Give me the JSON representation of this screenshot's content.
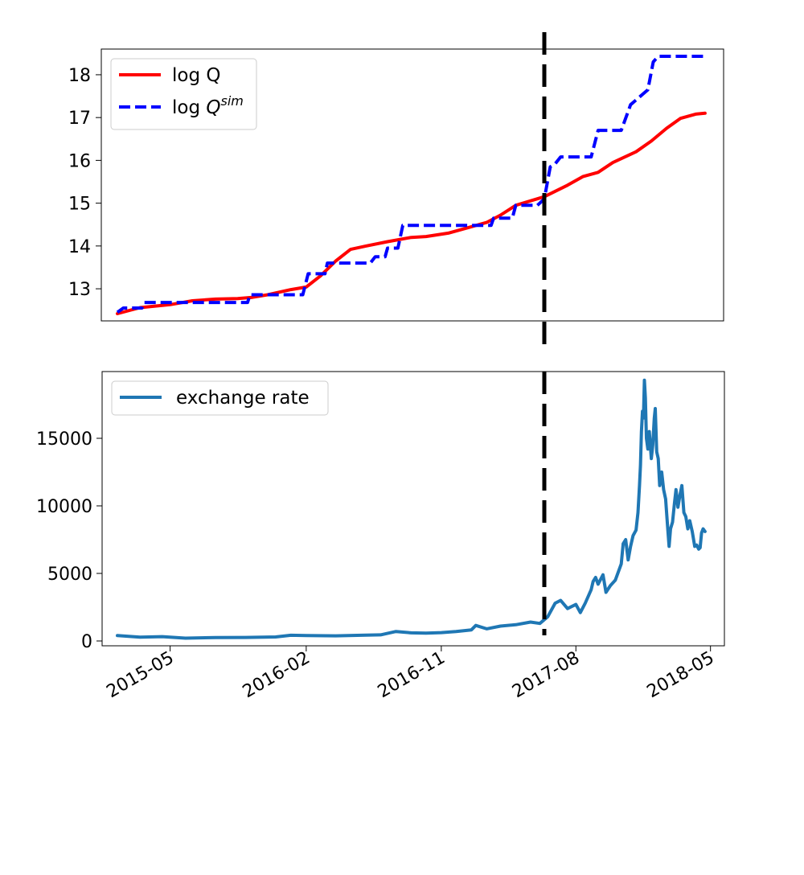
{
  "chart_data": [
    {
      "type": "line",
      "title": "",
      "xlabel": "",
      "ylabel": "",
      "x_range": [
        "2015-01-14",
        "2018-04-25"
      ],
      "ylim": [
        12.25,
        18.6
      ],
      "yticks": [
        13,
        14,
        15,
        16,
        17,
        18
      ],
      "legend": {
        "placement": "top-left",
        "entries": [
          "log Q",
          "log Q^sim"
        ]
      },
      "vertical_marker": {
        "x": "2017-05-29",
        "style": "dashed",
        "color": "#000000"
      },
      "series": [
        {
          "name": "log Q",
          "color": "#ff0000",
          "style": "solid",
          "points": [
            [
              "2015-01-14",
              12.42
            ],
            [
              "2015-03-01",
              12.56
            ],
            [
              "2015-05-01",
              12.63
            ],
            [
              "2015-06-15",
              12.72
            ],
            [
              "2015-08-01",
              12.76
            ],
            [
              "2015-09-15",
              12.77
            ],
            [
              "2015-10-15",
              12.8
            ],
            [
              "2015-11-15",
              12.86
            ],
            [
              "2016-01-01",
              12.98
            ],
            [
              "2016-02-01",
              13.04
            ],
            [
              "2016-03-01",
              13.3
            ],
            [
              "2016-04-01",
              13.65
            ],
            [
              "2016-05-01",
              13.92
            ],
            [
              "2016-06-01",
              14.0
            ],
            [
              "2016-07-15",
              14.1
            ],
            [
              "2016-09-01",
              14.2
            ],
            [
              "2016-10-01",
              14.22
            ],
            [
              "2016-11-15",
              14.3
            ],
            [
              "2017-01-01",
              14.45
            ],
            [
              "2017-02-01",
              14.55
            ],
            [
              "2017-03-01",
              14.72
            ],
            [
              "2017-04-01",
              14.95
            ],
            [
              "2017-05-29",
              15.15
            ],
            [
              "2017-07-15",
              15.42
            ],
            [
              "2017-08-15",
              15.62
            ],
            [
              "2017-09-15",
              15.72
            ],
            [
              "2017-10-15",
              15.95
            ],
            [
              "2017-12-01",
              16.2
            ],
            [
              "2018-01-01",
              16.45
            ],
            [
              "2018-02-01",
              16.75
            ],
            [
              "2018-03-01",
              16.98
            ],
            [
              "2018-04-01",
              17.08
            ],
            [
              "2018-04-20",
              17.1
            ]
          ]
        },
        {
          "name": "log Q^sim",
          "color": "#0000ff",
          "style": "dashed",
          "points": [
            [
              "2015-01-14",
              12.45
            ],
            [
              "2015-01-26",
              12.55
            ],
            [
              "2015-03-05",
              12.55
            ],
            [
              "2015-03-10",
              12.68
            ],
            [
              "2015-10-05",
              12.68
            ],
            [
              "2015-10-10",
              12.86
            ],
            [
              "2016-01-25",
              12.86
            ],
            [
              "2016-02-05",
              13.35
            ],
            [
              "2016-03-10",
              13.35
            ],
            [
              "2016-03-15",
              13.6
            ],
            [
              "2016-06-10",
              13.6
            ],
            [
              "2016-06-20",
              13.75
            ],
            [
              "2016-07-10",
              13.75
            ],
            [
              "2016-07-15",
              13.95
            ],
            [
              "2016-08-05",
              13.95
            ],
            [
              "2016-08-15",
              14.48
            ],
            [
              "2017-02-10",
              14.48
            ],
            [
              "2017-02-15",
              14.65
            ],
            [
              "2017-03-25",
              14.65
            ],
            [
              "2017-04-01",
              14.95
            ],
            [
              "2017-05-15",
              14.95
            ],
            [
              "2017-05-29",
              15.1
            ],
            [
              "2017-06-10",
              15.85
            ],
            [
              "2017-06-20",
              15.92
            ],
            [
              "2017-07-01",
              16.08
            ],
            [
              "2017-09-01",
              16.08
            ],
            [
              "2017-09-15",
              16.7
            ],
            [
              "2017-11-01",
              16.7
            ],
            [
              "2017-11-20",
              17.3
            ],
            [
              "2017-12-15",
              17.55
            ],
            [
              "2017-12-25",
              17.65
            ],
            [
              "2018-01-05",
              18.3
            ],
            [
              "2018-01-15",
              18.43
            ],
            [
              "2018-04-20",
              18.43
            ]
          ]
        }
      ]
    },
    {
      "type": "line",
      "title": "",
      "xlabel": "",
      "ylabel": "",
      "x_range": [
        "2015-01-14",
        "2018-04-25"
      ],
      "ylim": [
        -400,
        20000
      ],
      "yticks": [
        0,
        5000,
        10000,
        15000
      ],
      "xticks": [
        "2015-05",
        "2016-02",
        "2016-11",
        "2017-08",
        "2018-05"
      ],
      "legend": {
        "placement": "top-left",
        "entries": [
          "exchange rate"
        ]
      },
      "vertical_marker": {
        "x": "2017-05-29",
        "style": "dashed",
        "color": "#000000"
      },
      "series": [
        {
          "name": "exchange rate",
          "color": "#1f77b4",
          "style": "solid",
          "points": [
            [
              "2015-01-14",
              400
            ],
            [
              "2015-03-01",
              280
            ],
            [
              "2015-04-15",
              320
            ],
            [
              "2015-06-01",
              210
            ],
            [
              "2015-08-01",
              250
            ],
            [
              "2015-10-01",
              260
            ],
            [
              "2015-12-01",
              300
            ],
            [
              "2016-01-01",
              420
            ],
            [
              "2016-02-01",
              400
            ],
            [
              "2016-04-01",
              380
            ],
            [
              "2016-06-01",
              430
            ],
            [
              "2016-07-01",
              450
            ],
            [
              "2016-08-01",
              700
            ],
            [
              "2016-09-01",
              600
            ],
            [
              "2016-10-01",
              580
            ],
            [
              "2016-11-01",
              620
            ],
            [
              "2016-12-01",
              700
            ],
            [
              "2017-01-01",
              820
            ],
            [
              "2017-01-10",
              1150
            ],
            [
              "2017-02-01",
              900
            ],
            [
              "2017-03-01",
              1100
            ],
            [
              "2017-04-01",
              1200
            ],
            [
              "2017-05-01",
              1400
            ],
            [
              "2017-05-20",
              1300
            ],
            [
              "2017-06-05",
              1800
            ],
            [
              "2017-06-20",
              2800
            ],
            [
              "2017-07-01",
              3000
            ],
            [
              "2017-07-15",
              2400
            ],
            [
              "2017-08-01",
              2700
            ],
            [
              "2017-08-10",
              2100
            ],
            [
              "2017-08-20",
              2800
            ],
            [
              "2017-09-01",
              3800
            ],
            [
              "2017-09-05",
              4400
            ],
            [
              "2017-09-10",
              4700
            ],
            [
              "2017-09-15",
              4200
            ],
            [
              "2017-09-25",
              4900
            ],
            [
              "2017-10-01",
              3600
            ],
            [
              "2017-10-10",
              4100
            ],
            [
              "2017-10-20",
              4500
            ],
            [
              "2017-11-01",
              5700
            ],
            [
              "2017-11-05",
              7200
            ],
            [
              "2017-11-10",
              7500
            ],
            [
              "2017-11-15",
              6000
            ],
            [
              "2017-11-20",
              7000
            ],
            [
              "2017-11-25",
              7800
            ],
            [
              "2017-12-01",
              8200
            ],
            [
              "2017-12-05",
              9500
            ],
            [
              "2017-12-08",
              11500
            ],
            [
              "2017-12-10",
              13000
            ],
            [
              "2017-12-12",
              15500
            ],
            [
              "2017-12-14",
              17000
            ],
            [
              "2017-12-16",
              16500
            ],
            [
              "2017-12-18",
              19300
            ],
            [
              "2017-12-20",
              18000
            ],
            [
              "2017-12-22",
              15000
            ],
            [
              "2017-12-25",
              14200
            ],
            [
              "2017-12-28",
              15500
            ],
            [
              "2018-01-01",
              13500
            ],
            [
              "2018-01-04",
              14500
            ],
            [
              "2018-01-07",
              16500
            ],
            [
              "2018-01-09",
              17200
            ],
            [
              "2018-01-12",
              14000
            ],
            [
              "2018-01-15",
              13500
            ],
            [
              "2018-01-18",
              11500
            ],
            [
              "2018-01-22",
              12500
            ],
            [
              "2018-01-26",
              11200
            ],
            [
              "2018-01-30",
              10500
            ],
            [
              "2018-02-03",
              8500
            ],
            [
              "2018-02-06",
              7000
            ],
            [
              "2018-02-09",
              8300
            ],
            [
              "2018-02-13",
              8800
            ],
            [
              "2018-02-17",
              10200
            ],
            [
              "2018-02-20",
              11200
            ],
            [
              "2018-02-24",
              9900
            ],
            [
              "2018-02-28",
              10800
            ],
            [
              "2018-03-04",
              11500
            ],
            [
              "2018-03-08",
              9500
            ],
            [
              "2018-03-12",
              9200
            ],
            [
              "2018-03-16",
              8300
            ],
            [
              "2018-03-20",
              8900
            ],
            [
              "2018-03-25",
              8100
            ],
            [
              "2018-03-30",
              7000
            ],
            [
              "2018-04-03",
              7100
            ],
            [
              "2018-04-07",
              6800
            ],
            [
              "2018-04-10",
              6900
            ],
            [
              "2018-04-13",
              8000
            ],
            [
              "2018-04-16",
              8300
            ],
            [
              "2018-04-20",
              8100
            ]
          ]
        }
      ]
    }
  ]
}
